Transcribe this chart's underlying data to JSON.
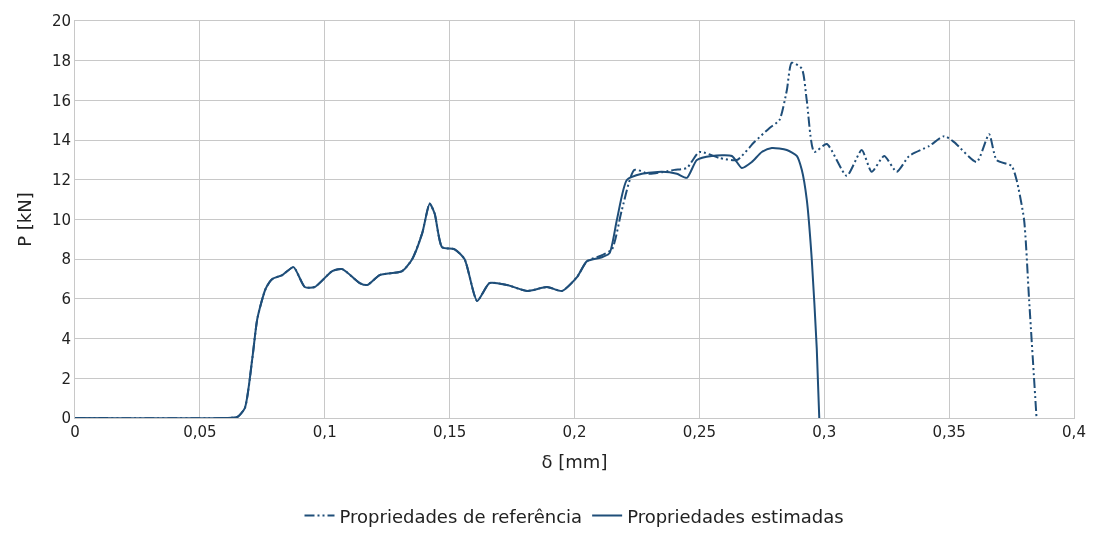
{
  "chart_data": {
    "type": "line",
    "xlabel": "δ [mm]",
    "ylabel": "P [kN]",
    "xlim": [
      0,
      0.4
    ],
    "xticks": [
      {
        "value": 0,
        "label": "0"
      },
      {
        "value": 0.05,
        "label": "0,05"
      },
      {
        "value": 0.1,
        "label": "0,1"
      },
      {
        "value": 0.15,
        "label": "0,15"
      },
      {
        "value": 0.2,
        "label": "0,2"
      },
      {
        "value": 0.25,
        "label": "0,25"
      },
      {
        "value": 0.3,
        "label": "0,3"
      },
      {
        "value": 0.35,
        "label": "0,35"
      },
      {
        "value": 0.4,
        "label": "0,4"
      }
    ],
    "ylim": [
      0,
      20
    ],
    "yticks": [
      0,
      2,
      4,
      6,
      8,
      10,
      12,
      14,
      16,
      18,
      20
    ],
    "grid": true,
    "legend": "bottom",
    "series": [
      {
        "name": "Propriedades de referência",
        "color": "#1f4e79",
        "line_style": "dashed",
        "x": [
          0,
          0.06,
          0.065,
          0.068,
          0.071,
          0.073,
          0.0763,
          0.079,
          0.083,
          0.0875,
          0.092,
          0.096,
          0.103,
          0.107,
          0.114,
          0.117,
          0.122,
          0.131,
          0.135,
          0.139,
          0.142,
          0.144,
          0.147,
          0.152,
          0.156,
          0.161,
          0.166,
          0.173,
          0.181,
          0.189,
          0.195,
          0.201,
          0.205,
          0.211,
          0.215,
          0.219,
          0.224,
          0.23,
          0.24,
          0.245,
          0.25,
          0.258,
          0.265,
          0.272,
          0.278,
          0.282,
          0.285,
          0.287,
          0.291,
          0.293,
          0.296,
          0.301,
          0.309,
          0.315,
          0.319,
          0.324,
          0.329,
          0.334,
          0.342,
          0.348,
          0.352,
          0.361,
          0.366,
          0.369,
          0.375,
          0.377,
          0.38,
          0.382,
          0.385
        ],
        "values": [
          0,
          0,
          0.05,
          0.5,
          3,
          5,
          6.5,
          7.0,
          7.2,
          7.6,
          6.6,
          6.6,
          7.4,
          7.5,
          6.8,
          6.7,
          7.2,
          7.4,
          8.0,
          9.3,
          10.8,
          10.3,
          8.6,
          8.5,
          8.0,
          5.9,
          6.8,
          6.7,
          6.4,
          6.6,
          6.4,
          7.1,
          7.9,
          8.2,
          8.5,
          10.5,
          12.5,
          12.3,
          12.5,
          12.6,
          13.4,
          13.1,
          13.0,
          13.9,
          14.6,
          15.0,
          16.5,
          17.9,
          17.6,
          16.0,
          13.4,
          13.8,
          12.2,
          13.5,
          12.4,
          13.2,
          12.4,
          13.2,
          13.7,
          14.2,
          13.9,
          12.9,
          14.3,
          13.0,
          12.7,
          12.0,
          10.0,
          6.0,
          0
        ]
      },
      {
        "name": "Propriedades estimadas",
        "color": "#1f4e79",
        "line_style": "solid",
        "x": [
          0,
          0.06,
          0.065,
          0.068,
          0.071,
          0.073,
          0.0763,
          0.079,
          0.083,
          0.0875,
          0.092,
          0.096,
          0.103,
          0.107,
          0.114,
          0.117,
          0.122,
          0.131,
          0.135,
          0.139,
          0.142,
          0.144,
          0.147,
          0.152,
          0.156,
          0.161,
          0.166,
          0.173,
          0.181,
          0.189,
          0.195,
          0.201,
          0.205,
          0.211,
          0.214,
          0.217,
          0.221,
          0.227,
          0.235,
          0.241,
          0.245,
          0.249,
          0.255,
          0.263,
          0.267,
          0.271,
          0.275,
          0.279,
          0.285,
          0.289,
          0.291,
          0.293,
          0.295,
          0.297,
          0.298
        ],
        "values": [
          0,
          0,
          0.05,
          0.5,
          3,
          5,
          6.5,
          7.0,
          7.2,
          7.6,
          6.6,
          6.6,
          7.4,
          7.5,
          6.8,
          6.7,
          7.2,
          7.4,
          8.0,
          9.3,
          10.8,
          10.3,
          8.6,
          8.5,
          8.0,
          5.9,
          6.8,
          6.7,
          6.4,
          6.6,
          6.4,
          7.1,
          7.9,
          8.1,
          8.3,
          10.0,
          12.0,
          12.3,
          12.4,
          12.3,
          12.1,
          13.0,
          13.2,
          13.2,
          12.6,
          12.9,
          13.4,
          13.6,
          13.5,
          13.2,
          12.5,
          11.0,
          8.0,
          3.5,
          0
        ]
      }
    ]
  }
}
